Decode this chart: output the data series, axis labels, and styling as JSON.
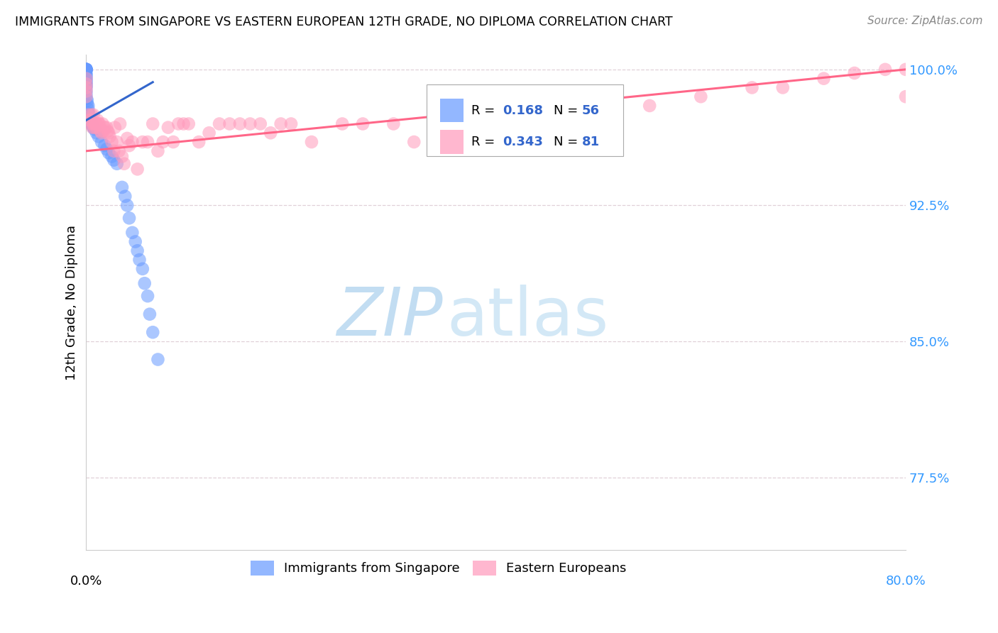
{
  "title": "IMMIGRANTS FROM SINGAPORE VS EASTERN EUROPEAN 12TH GRADE, NO DIPLOMA CORRELATION CHART",
  "source": "Source: ZipAtlas.com",
  "ylabel": "12th Grade, No Diploma",
  "legend1_label": "Immigrants from Singapore",
  "legend2_label": "Eastern Europeans",
  "R_blue": "0.168",
  "N_blue": "56",
  "R_pink": "0.343",
  "N_pink": "81",
  "blue_color": "#6699ff",
  "pink_color": "#ff99bb",
  "trend_blue_color": "#3366cc",
  "trend_pink_color": "#ff6688",
  "background_color": "#ffffff",
  "watermark_zip": "ZIP",
  "watermark_atlas": "atlas",
  "watermark_color": "#cce5f5",
  "xmin": 0.0,
  "xmax": 0.8,
  "ymin": 0.735,
  "ymax": 1.008,
  "yticks": [
    1.0,
    0.925,
    0.85,
    0.775
  ],
  "ytick_labels": [
    "100.0%",
    "92.5%",
    "85.0%",
    "77.5%"
  ],
  "blue_x": [
    0.0,
    0.0,
    0.0,
    0.0,
    0.0,
    0.0,
    0.0,
    0.0,
    0.0,
    0.0,
    0.0,
    0.0,
    0.0,
    0.0,
    0.0,
    0.0,
    0.0,
    0.0,
    0.0,
    0.0,
    0.001,
    0.001,
    0.002,
    0.002,
    0.002,
    0.003,
    0.003,
    0.004,
    0.005,
    0.005,
    0.006,
    0.007,
    0.008,
    0.01,
    0.012,
    0.015,
    0.018,
    0.02,
    0.022,
    0.025,
    0.027,
    0.03,
    0.035,
    0.038,
    0.04,
    0.042,
    0.045,
    0.048,
    0.05,
    0.052,
    0.055,
    0.057,
    0.06,
    0.062,
    0.065,
    0.07
  ],
  "blue_y": [
    1.0,
    1.0,
    1.0,
    1.0,
    1.0,
    1.0,
    1.0,
    1.0,
    0.998,
    0.997,
    0.996,
    0.995,
    0.994,
    0.993,
    0.992,
    0.991,
    0.99,
    0.988,
    0.986,
    0.984,
    0.983,
    0.981,
    0.98,
    0.978,
    0.976,
    0.975,
    0.973,
    0.972,
    0.971,
    0.97,
    0.969,
    0.968,
    0.967,
    0.965,
    0.963,
    0.96,
    0.958,
    0.956,
    0.954,
    0.952,
    0.95,
    0.948,
    0.935,
    0.93,
    0.925,
    0.918,
    0.91,
    0.905,
    0.9,
    0.895,
    0.89,
    0.882,
    0.875,
    0.865,
    0.855,
    0.84
  ],
  "pink_x": [
    0.0,
    0.0,
    0.0,
    0.0,
    0.0,
    0.002,
    0.003,
    0.004,
    0.005,
    0.005,
    0.006,
    0.007,
    0.007,
    0.008,
    0.009,
    0.01,
    0.01,
    0.011,
    0.012,
    0.013,
    0.014,
    0.015,
    0.016,
    0.017,
    0.018,
    0.02,
    0.021,
    0.022,
    0.023,
    0.025,
    0.027,
    0.028,
    0.03,
    0.032,
    0.033,
    0.035,
    0.037,
    0.04,
    0.042,
    0.045,
    0.05,
    0.055,
    0.06,
    0.065,
    0.07,
    0.075,
    0.08,
    0.085,
    0.09,
    0.095,
    0.1,
    0.11,
    0.12,
    0.13,
    0.14,
    0.15,
    0.16,
    0.17,
    0.18,
    0.19,
    0.2,
    0.22,
    0.25,
    0.27,
    0.3,
    0.32,
    0.35,
    0.38,
    0.4,
    0.42,
    0.45,
    0.5,
    0.55,
    0.6,
    0.65,
    0.68,
    0.72,
    0.75,
    0.78,
    0.8,
    0.8
  ],
  "pink_y": [
    0.995,
    0.992,
    0.99,
    0.988,
    0.985,
    0.975,
    0.972,
    0.97,
    0.975,
    0.972,
    0.968,
    0.975,
    0.97,
    0.968,
    0.97,
    0.97,
    0.968,
    0.972,
    0.97,
    0.97,
    0.966,
    0.965,
    0.97,
    0.966,
    0.968,
    0.968,
    0.966,
    0.965,
    0.963,
    0.96,
    0.955,
    0.968,
    0.96,
    0.955,
    0.97,
    0.952,
    0.948,
    0.962,
    0.958,
    0.96,
    0.945,
    0.96,
    0.96,
    0.97,
    0.955,
    0.96,
    0.968,
    0.96,
    0.97,
    0.97,
    0.97,
    0.96,
    0.965,
    0.97,
    0.97,
    0.97,
    0.97,
    0.97,
    0.965,
    0.97,
    0.97,
    0.96,
    0.97,
    0.97,
    0.97,
    0.96,
    0.96,
    0.96,
    0.97,
    0.965,
    0.97,
    0.975,
    0.98,
    0.985,
    0.99,
    0.99,
    0.995,
    0.998,
    1.0,
    1.0,
    0.985
  ],
  "trend_blue_x0": 0.0,
  "trend_blue_x1": 0.065,
  "trend_blue_y0": 0.972,
  "trend_blue_y1": 0.993,
  "trend_pink_x0": 0.0,
  "trend_pink_x1": 0.8,
  "trend_pink_y0": 0.955,
  "trend_pink_y1": 1.0
}
